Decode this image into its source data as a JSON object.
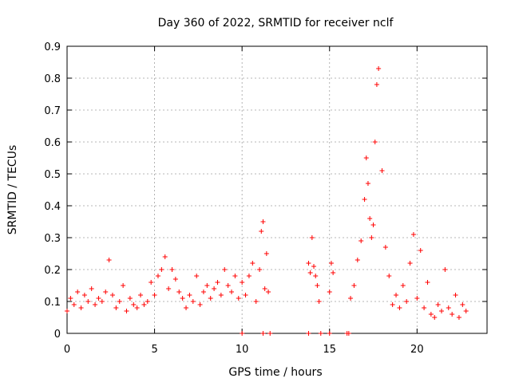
{
  "chart_data": {
    "type": "scatter",
    "title": "Day 360 of 2022, SRMTID for receiver nclf",
    "xlabel": "GPS time / hours",
    "ylabel": "SRMTID / TECUs",
    "xlim": [
      0,
      24
    ],
    "ylim": [
      0,
      0.9
    ],
    "x_ticks": [
      "0",
      "5",
      "10",
      "15",
      "20"
    ],
    "x_tick_values": [
      0,
      5,
      10,
      15,
      20
    ],
    "y_ticks": [
      "0",
      "0.1",
      "0.2",
      "0.3",
      "0.4",
      "0.5",
      "0.6",
      "0.7",
      "0.8",
      "0.9"
    ],
    "y_tick_values": [
      0,
      0.1,
      0.2,
      0.3,
      0.4,
      0.5,
      0.6,
      0.7,
      0.8,
      0.9
    ],
    "grid": true,
    "marker": "plus",
    "color": "#ff0000",
    "series": [
      {
        "name": "SRMTID",
        "x": [
          0.0,
          0.2,
          0.4,
          0.6,
          0.8,
          1.0,
          1.2,
          1.4,
          1.6,
          1.8,
          2.0,
          2.2,
          2.4,
          2.6,
          2.8,
          3.0,
          3.2,
          3.4,
          3.6,
          3.8,
          4.0,
          4.2,
          4.4,
          4.6,
          4.8,
          5.0,
          5.2,
          5.4,
          5.6,
          5.8,
          6.0,
          6.2,
          6.4,
          6.6,
          6.8,
          7.0,
          7.2,
          7.4,
          7.6,
          7.8,
          8.0,
          8.2,
          8.4,
          8.6,
          8.8,
          9.0,
          9.2,
          9.4,
          9.6,
          9.8,
          10.0,
          10.2,
          10.4,
          10.6,
          10.8,
          11.0,
          11.1,
          11.2,
          11.3,
          11.4,
          11.5,
          13.8,
          13.9,
          14.0,
          14.1,
          14.2,
          14.3,
          14.4,
          15.0,
          15.1,
          15.2,
          16.2,
          16.4,
          16.6,
          16.8,
          17.0,
          17.1,
          17.2,
          17.3,
          17.4,
          17.5,
          17.6,
          17.7,
          17.8,
          18.0,
          18.2,
          18.4,
          18.6,
          18.8,
          19.0,
          19.2,
          19.4,
          19.6,
          19.8,
          20.0,
          20.2,
          20.4,
          20.6,
          20.8,
          21.0,
          21.2,
          21.4,
          21.6,
          21.8,
          22.0,
          22.2,
          22.4,
          22.6,
          22.8
        ],
        "y": [
          0.07,
          0.11,
          0.09,
          0.13,
          0.08,
          0.12,
          0.1,
          0.14,
          0.09,
          0.11,
          0.1,
          0.13,
          0.23,
          0.12,
          0.08,
          0.1,
          0.15,
          0.07,
          0.11,
          0.09,
          0.08,
          0.12,
          0.09,
          0.1,
          0.16,
          0.12,
          0.18,
          0.2,
          0.24,
          0.14,
          0.2,
          0.17,
          0.13,
          0.11,
          0.08,
          0.12,
          0.1,
          0.18,
          0.09,
          0.13,
          0.15,
          0.11,
          0.14,
          0.16,
          0.12,
          0.2,
          0.15,
          0.13,
          0.18,
          0.11,
          0.16,
          0.12,
          0.18,
          0.22,
          0.1,
          0.2,
          0.32,
          0.35,
          0.14,
          0.25,
          0.13,
          0.22,
          0.19,
          0.3,
          0.21,
          0.18,
          0.15,
          0.1,
          0.13,
          0.22,
          0.19,
          0.11,
          0.15,
          0.23,
          0.29,
          0.42,
          0.55,
          0.47,
          0.36,
          0.3,
          0.34,
          0.6,
          0.78,
          0.83,
          0.51,
          0.27,
          0.18,
          0.09,
          0.12,
          0.08,
          0.15,
          0.1,
          0.22,
          0.31,
          0.11,
          0.26,
          0.08,
          0.16,
          0.06,
          0.05,
          0.09,
          0.07,
          0.2,
          0.08,
          0.06,
          0.12,
          0.05,
          0.09,
          0.07
        ],
        "bottom_markers_x": [
          10.0,
          11.2,
          11.6,
          13.8,
          14.5,
          15.0,
          16.0,
          16.1
        ]
      }
    ]
  }
}
